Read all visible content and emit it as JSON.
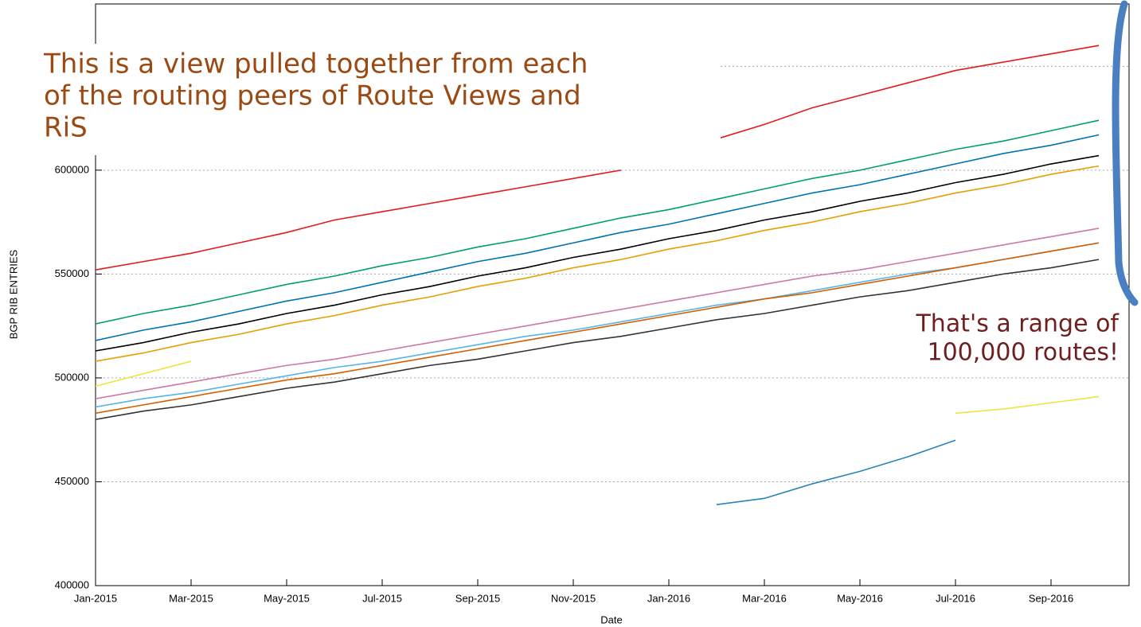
{
  "chart_data": {
    "type": "line",
    "y_label": "BGP RIB ENTRIES",
    "x_label": "Date",
    "x": [
      "Jan-2015",
      "Feb-2015",
      "Mar-2015",
      "Apr-2015",
      "May-2015",
      "Jun-2015",
      "Jul-2015",
      "Aug-2015",
      "Sep-2015",
      "Oct-2015",
      "Nov-2015",
      "Dec-2015",
      "Jan-2016",
      "Feb-2016",
      "Mar-2016",
      "Apr-2016",
      "May-2016",
      "Jun-2016",
      "Jul-2016",
      "Aug-2016",
      "Sep-2016",
      "Oct-2016"
    ],
    "xticks": [
      0,
      2,
      4,
      6,
      8,
      10,
      12,
      14,
      16,
      18,
      20
    ],
    "ylim": [
      400000,
      680000
    ],
    "yticks": [
      400000,
      450000,
      500000,
      550000,
      600000,
      650000
    ],
    "grid": true,
    "series": [
      {
        "color": "#e41a1c",
        "values": [
          552000,
          556000,
          560000,
          565000,
          570000,
          576000,
          580000,
          584000,
          588000,
          592000,
          596000,
          600000,
          null,
          615000,
          622000,
          630000,
          636000,
          642000,
          648000,
          652000,
          656000,
          660000
        ]
      },
      {
        "color": "#009e73",
        "values": [
          526000,
          531000,
          535000,
          540000,
          545000,
          549000,
          554000,
          558000,
          563000,
          567000,
          572000,
          577000,
          581000,
          586000,
          591000,
          596000,
          600000,
          605000,
          610000,
          614000,
          619000,
          624000
        ]
      },
      {
        "color": "#0072b2",
        "values": [
          518000,
          523000,
          527000,
          532000,
          537000,
          541000,
          546000,
          551000,
          556000,
          560000,
          565000,
          570000,
          574000,
          579000,
          584000,
          589000,
          593000,
          598000,
          603000,
          608000,
          612000,
          617000
        ]
      },
      {
        "color": "#000000",
        "values": [
          513000,
          517000,
          522000,
          526000,
          531000,
          535000,
          540000,
          544000,
          549000,
          553000,
          558000,
          562000,
          567000,
          571000,
          576000,
          580000,
          585000,
          589000,
          594000,
          598000,
          603000,
          607000
        ]
      },
      {
        "color": "#e69f00",
        "values": [
          508000,
          512000,
          517000,
          521000,
          526000,
          530000,
          535000,
          539000,
          544000,
          548000,
          553000,
          557000,
          562000,
          566000,
          571000,
          575000,
          580000,
          584000,
          589000,
          593000,
          598000,
          602000
        ]
      },
      {
        "color": "#cc79a7",
        "values": [
          490000,
          494000,
          498000,
          502000,
          506000,
          509000,
          513000,
          517000,
          521000,
          525000,
          529000,
          533000,
          537000,
          541000,
          545000,
          549000,
          552000,
          556000,
          560000,
          564000,
          568000,
          572000
        ]
      },
      {
        "color": "#56b4e9",
        "values": [
          486000,
          490000,
          493000,
          497000,
          501000,
          505000,
          508000,
          512000,
          516000,
          520000,
          523000,
          527000,
          531000,
          535000,
          538000,
          542000,
          546000,
          550000,
          553000,
          557000,
          561000,
          565000
        ]
      },
      {
        "color": "#d55e00",
        "values": [
          483000,
          487000,
          491000,
          495000,
          499000,
          502000,
          506000,
          510000,
          514000,
          518000,
          522000,
          526000,
          530000,
          534000,
          538000,
          541000,
          545000,
          549000,
          553000,
          557000,
          561000,
          565000
        ]
      },
      {
        "color": "#333333",
        "values": [
          480000,
          484000,
          487000,
          491000,
          495000,
          498000,
          502000,
          506000,
          509000,
          513000,
          517000,
          520000,
          524000,
          528000,
          531000,
          535000,
          539000,
          542000,
          546000,
          550000,
          553000,
          557000
        ]
      },
      {
        "color": "#f0e442",
        "values": [
          496000,
          502000,
          508000,
          null,
          null,
          null,
          null,
          null,
          null,
          null,
          null,
          null,
          null,
          null,
          null,
          null,
          null,
          null,
          483000,
          485000,
          488000,
          491000
        ]
      },
      {
        "color": "#2b83ba",
        "values": [
          null,
          null,
          null,
          null,
          null,
          null,
          null,
          null,
          null,
          null,
          null,
          null,
          null,
          439000,
          442000,
          449000,
          455000,
          462000,
          470000,
          null,
          null,
          null
        ]
      }
    ],
    "annotations": [
      {
        "lines": [
          "This is a view pulled together from each",
          "of the routing peers of Route Views and",
          "RiS"
        ]
      },
      {
        "lines": [
          "That's a range of",
          "100,000 routes!"
        ]
      }
    ]
  }
}
